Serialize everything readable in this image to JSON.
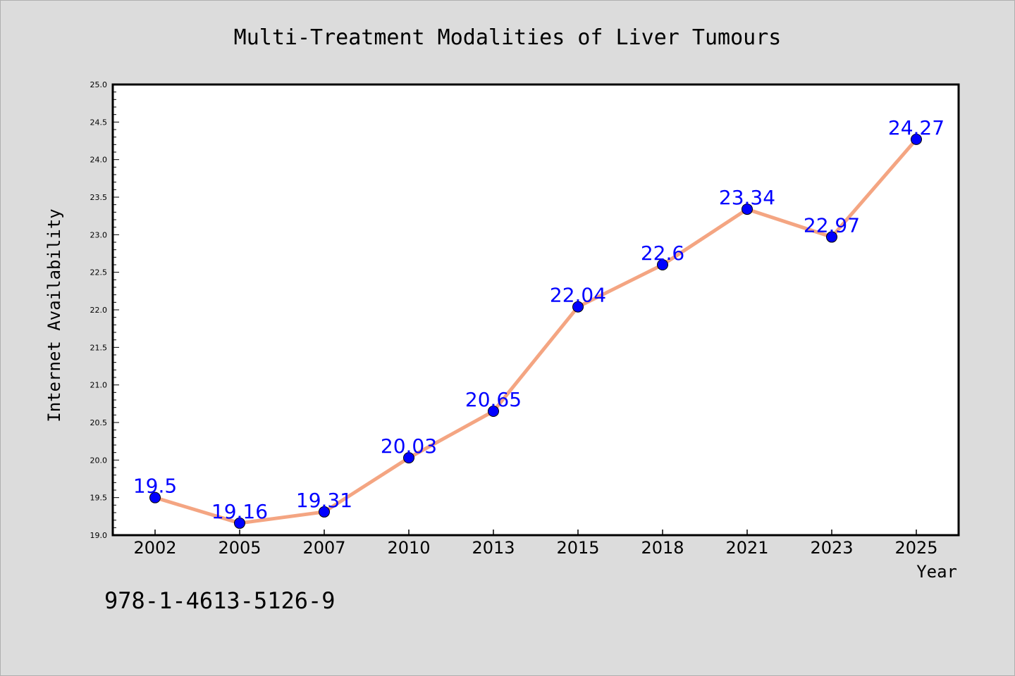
{
  "chart_data": {
    "type": "line",
    "title": "Multi-Treatment Modalities of Liver Tumours",
    "xlabel": "Year",
    "ylabel": "Internet Availability",
    "categories": [
      "2002",
      "2005",
      "2007",
      "2010",
      "2013",
      "2015",
      "2018",
      "2021",
      "2023",
      "2025"
    ],
    "series": [
      {
        "values": [
          19.5,
          19.16,
          19.31,
          20.03,
          20.65,
          22.04,
          22.6,
          23.34,
          22.97,
          24.27
        ],
        "data_labels": [
          "19.5",
          "19.16",
          "19.31",
          "20.03",
          "20.65",
          "22.04",
          "22.6",
          "23.34",
          "22.97",
          "24.27"
        ],
        "line_color": "#f4a582",
        "marker_color": "#0000ff",
        "label_color": "#0000ff"
      }
    ],
    "ylim": [
      19.0,
      25.0
    ],
    "yticks": [
      "19.0",
      "19.5",
      "20.0",
      "20.5",
      "21.0",
      "21.5",
      "22.0",
      "22.5",
      "23.0",
      "23.5",
      "24.0",
      "24.5",
      "25.0"
    ],
    "grid": false,
    "legend": "none"
  },
  "annotation": {
    "isbn": "978-1-4613-5126-9"
  },
  "colors": {
    "background": "#dcdcdc",
    "plot_background": "#ffffff",
    "axis": "#000000",
    "text": "#000000"
  }
}
